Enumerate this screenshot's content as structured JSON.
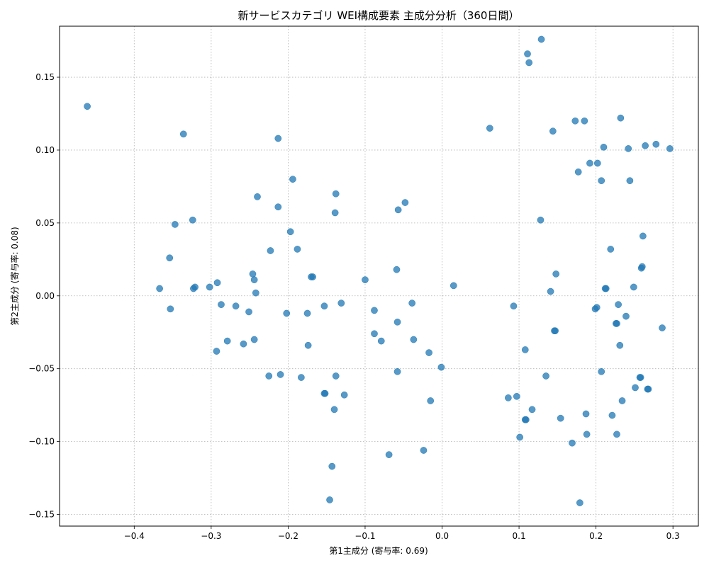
{
  "chart_data": {
    "type": "scatter",
    "title": "新サービスカテゴリ WEI構成要素 主成分分析（360日間）",
    "xlabel": "第1主成分 (寄与率: 0.69)",
    "ylabel": "第2主成分 (寄与率: 0.08)",
    "xlim": [
      -0.497,
      0.333
    ],
    "ylim": [
      -0.158,
      0.185
    ],
    "x_ticks": [
      -0.4,
      -0.3,
      -0.2,
      -0.1,
      0.0,
      0.1,
      0.2,
      0.3
    ],
    "x_tick_labels": [
      "−0.4",
      "−0.3",
      "−0.2",
      "−0.1",
      "0.0",
      "0.1",
      "0.2",
      "0.3"
    ],
    "y_ticks": [
      -0.15,
      -0.1,
      -0.05,
      0.0,
      0.05,
      0.1,
      0.15
    ],
    "y_tick_labels": [
      "−0.15",
      "−0.10",
      "−0.05",
      "0.00",
      "0.05",
      "0.10",
      "0.15"
    ],
    "grid": true,
    "legend": false,
    "marker_color": "#1f77b4",
    "points": [
      [
        -0.461,
        0.13
      ],
      [
        -0.336,
        0.111
      ],
      [
        -0.213,
        0.108
      ],
      [
        -0.194,
        0.08
      ],
      [
        -0.24,
        0.068
      ],
      [
        -0.138,
        0.07
      ],
      [
        -0.213,
        0.061
      ],
      [
        -0.139,
        0.057
      ],
      [
        -0.048,
        0.064
      ],
      [
        -0.057,
        0.059
      ],
      [
        -0.324,
        0.052
      ],
      [
        -0.347,
        0.049
      ],
      [
        -0.197,
        0.044
      ],
      [
        -0.223,
        0.031
      ],
      [
        -0.188,
        0.032
      ],
      [
        -0.354,
        0.026
      ],
      [
        -0.059,
        0.018
      ],
      [
        -0.246,
        0.015
      ],
      [
        -0.244,
        0.011
      ],
      [
        -0.17,
        0.013
      ],
      [
        -0.168,
        0.013
      ],
      [
        -0.1,
        0.011
      ],
      [
        -0.292,
        0.009
      ],
      [
        -0.367,
        0.005
      ],
      [
        -0.323,
        0.005
      ],
      [
        -0.321,
        0.006
      ],
      [
        -0.302,
        0.006
      ],
      [
        -0.242,
        0.002
      ],
      [
        0.015,
        0.007
      ],
      [
        -0.353,
        -0.009
      ],
      [
        -0.287,
        -0.006
      ],
      [
        -0.268,
        -0.007
      ],
      [
        -0.251,
        -0.011
      ],
      [
        -0.202,
        -0.012
      ],
      [
        -0.175,
        -0.012
      ],
      [
        -0.153,
        -0.007
      ],
      [
        -0.131,
        -0.005
      ],
      [
        -0.088,
        -0.01
      ],
      [
        -0.039,
        -0.005
      ],
      [
        -0.058,
        -0.018
      ],
      [
        -0.279,
        -0.031
      ],
      [
        -0.258,
        -0.033
      ],
      [
        -0.244,
        -0.03
      ],
      [
        -0.293,
        -0.038
      ],
      [
        -0.174,
        -0.034
      ],
      [
        -0.088,
        -0.026
      ],
      [
        -0.079,
        -0.031
      ],
      [
        -0.037,
        -0.03
      ],
      [
        -0.017,
        -0.039
      ],
      [
        -0.001,
        -0.049
      ],
      [
        -0.058,
        -0.052
      ],
      [
        -0.225,
        -0.055
      ],
      [
        -0.21,
        -0.054
      ],
      [
        -0.183,
        -0.056
      ],
      [
        -0.138,
        -0.055
      ],
      [
        -0.153,
        -0.067
      ],
      [
        -0.152,
        -0.067
      ],
      [
        -0.127,
        -0.068
      ],
      [
        -0.015,
        -0.072
      ],
      [
        -0.14,
        -0.078
      ],
      [
        -0.024,
        -0.106
      ],
      [
        -0.069,
        -0.109
      ],
      [
        -0.143,
        -0.117
      ],
      [
        -0.146,
        -0.14
      ],
      [
        0.062,
        0.115
      ],
      [
        0.111,
        0.166
      ],
      [
        0.113,
        0.16
      ],
      [
        0.129,
        0.176
      ],
      [
        0.144,
        0.113
      ],
      [
        0.173,
        0.12
      ],
      [
        0.185,
        0.12
      ],
      [
        0.232,
        0.122
      ],
      [
        0.21,
        0.102
      ],
      [
        0.242,
        0.101
      ],
      [
        0.264,
        0.103
      ],
      [
        0.278,
        0.104
      ],
      [
        0.296,
        0.101
      ],
      [
        0.192,
        0.091
      ],
      [
        0.202,
        0.091
      ],
      [
        0.177,
        0.085
      ],
      [
        0.207,
        0.079
      ],
      [
        0.244,
        0.079
      ],
      [
        0.128,
        0.052
      ],
      [
        0.261,
        0.041
      ],
      [
        0.219,
        0.032
      ],
      [
        0.26,
        0.02
      ],
      [
        0.259,
        0.019
      ],
      [
        0.148,
        0.015
      ],
      [
        0.212,
        0.005
      ],
      [
        0.213,
        0.005
      ],
      [
        0.249,
        0.006
      ],
      [
        0.141,
        0.003
      ],
      [
        0.093,
        -0.007
      ],
      [
        0.201,
        -0.008
      ],
      [
        0.199,
        -0.009
      ],
      [
        0.229,
        -0.006
      ],
      [
        0.239,
        -0.014
      ],
      [
        0.226,
        -0.019
      ],
      [
        0.227,
        -0.019
      ],
      [
        0.286,
        -0.022
      ],
      [
        0.146,
        -0.024
      ],
      [
        0.147,
        -0.024
      ],
      [
        0.108,
        -0.037
      ],
      [
        0.231,
        -0.034
      ],
      [
        0.207,
        -0.052
      ],
      [
        0.135,
        -0.055
      ],
      [
        0.258,
        -0.056
      ],
      [
        0.257,
        -0.056
      ],
      [
        0.251,
        -0.063
      ],
      [
        0.267,
        -0.064
      ],
      [
        0.268,
        -0.064
      ],
      [
        0.086,
        -0.07
      ],
      [
        0.097,
        -0.069
      ],
      [
        0.234,
        -0.072
      ],
      [
        0.117,
        -0.078
      ],
      [
        0.108,
        -0.085
      ],
      [
        0.109,
        -0.085
      ],
      [
        0.154,
        -0.084
      ],
      [
        0.187,
        -0.081
      ],
      [
        0.221,
        -0.082
      ],
      [
        0.188,
        -0.095
      ],
      [
        0.227,
        -0.095
      ],
      [
        0.101,
        -0.097
      ],
      [
        0.169,
        -0.101
      ],
      [
        0.179,
        -0.142
      ]
    ]
  }
}
